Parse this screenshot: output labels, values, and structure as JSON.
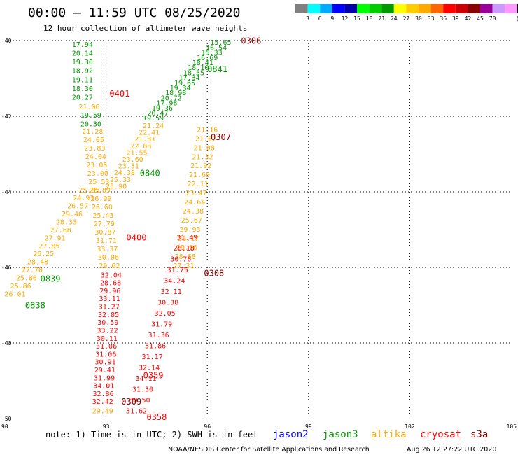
{
  "header": {
    "title": "00:00 – 11:59 UTC 08/25/2020",
    "subtitle": "12 hour collection of altimeter wave heights"
  },
  "legend": {
    "colors": [
      "#808080",
      "#00ffff",
      "#00aaff",
      "#0000ff",
      "#0000aa",
      "#00ff00",
      "#00cc00",
      "#009900",
      "#ffff00",
      "#ffcc00",
      "#ffaa00",
      "#ff6600",
      "#ff0000",
      "#cc0000",
      "#880000",
      "#990099",
      "#cc99ff",
      "#ff99ff",
      "#000000"
    ],
    "labels": [
      "3",
      "6",
      "9",
      "12",
      "15",
      "18",
      "21",
      "24",
      "27",
      "30",
      "33",
      "36",
      "39",
      "42",
      "45",
      "70",
      "(ft)"
    ]
  },
  "map": {
    "lon_ticks": [
      "90",
      "93",
      "96",
      "99",
      "102",
      "105"
    ],
    "lat_ticks": [
      "-40",
      "-42",
      "-44",
      "-46",
      "-48",
      "-50"
    ],
    "lon_range": [
      90,
      105
    ],
    "lat_range": [
      -50,
      -40
    ],
    "point_colors": {
      "jason3": "#009900",
      "altika": "#ffaa00",
      "cryosat": "#ff0000",
      "s3a": "#880000"
    },
    "tracks": [
      {
        "sat": "jason3",
        "values": [
          "17.94",
          "20.14",
          "19.30",
          "18.92",
          "19.11",
          "18.30",
          "20.27"
        ],
        "lon_start": 92.3,
        "lon_end": 92.3,
        "lat_start": -40.1,
        "lat_end": -41.5
      },
      {
        "sat": "altika",
        "values": [
          "21.06"
        ],
        "lon_start": 92.5,
        "lon_end": 92.5,
        "lat_start": -41.75,
        "lat_end": -41.75
      },
      {
        "sat": "jason3",
        "values": [
          "19.59",
          "20.30"
        ],
        "lon_start": 92.55,
        "lon_end": 92.55,
        "lat_start": -41.97,
        "lat_end": -42.2
      },
      {
        "sat": "altika",
        "values": [
          "21.28",
          "24.05",
          "23.83",
          "24.04",
          "23.05",
          "23.00",
          "25.53",
          "25.89",
          "26.99",
          "26.60",
          "25.43",
          "27.79",
          "30.87",
          "31.71",
          "33.37",
          "30.06",
          "29.62"
        ],
        "lon_start": 92.6,
        "lon_end": 93.1,
        "lat_start": -42.4,
        "lat_end": -45.95
      },
      {
        "sat": "cryosat",
        "values": [
          "32.04",
          "28.68",
          "29.96",
          "33.11",
          "31.27",
          "32.85",
          "30.59",
          "33.22",
          "30.11",
          "31.06",
          "31.06",
          "30.91",
          "29.41",
          "31.99",
          "34.01",
          "32.86",
          "32.42"
        ],
        "lon_start": 93.15,
        "lon_end": 92.9,
        "lat_start": -46.2,
        "lat_end": -49.55
      },
      {
        "sat": "altika",
        "values": [
          "29.49"
        ],
        "lon_start": 92.9,
        "lon_end": 92.9,
        "lat_start": -49.8,
        "lat_end": -49.8
      },
      {
        "sat": "altika",
        "values": [
          "25.85",
          "24.93",
          "26.57",
          "29.46",
          "28.33",
          "27.68",
          "27.91",
          "27.85",
          "26.25",
          "28.48",
          "27.70",
          "25.86",
          "25.86",
          "26.01"
        ],
        "lon_start": 92.5,
        "lon_end": 90.3,
        "lat_start": -43.95,
        "lat_end": -46.7
      },
      {
        "sat": "altika",
        "values": [
          "21.24",
          "22.41",
          "21.81",
          "22.83",
          "21.55",
          "23.60",
          "23.31",
          "24.38",
          "25.33",
          "25.90"
        ],
        "lon_start": 94.4,
        "lon_end": 93.3,
        "lat_start": -42.25,
        "lat_end": -43.85
      },
      {
        "sat": "jason3",
        "values": [
          "15.65",
          "16.54",
          "15.33",
          "16.69",
          "18.41",
          "18.10",
          "18.55",
          "17.34",
          "19.65",
          "19.34",
          "18.98",
          "20.72",
          "17.98",
          "19.36",
          "20.47",
          "19.59"
        ],
        "lon_start": 96.4,
        "lon_end": 94.4,
        "lat_start": -40.05,
        "lat_end": -42.05
      },
      {
        "sat": "altika",
        "values": [
          "21.16",
          "21.07",
          "21.08",
          "21.32",
          "21.92",
          "21.69",
          "22.11",
          "23.47",
          "24.64",
          "24.38",
          "25.67",
          "29.93",
          "28.17",
          "29.96",
          "28.68",
          "27.31"
        ],
        "lon_start": 96.0,
        "lon_end": 95.3,
        "lat_start": -42.35,
        "lat_end": -45.95
      },
      {
        "sat": "cryosat",
        "values": [
          "31.49",
          "28.18",
          "30.76",
          "31.75",
          "34.24",
          "32.11",
          "30.38",
          "32.05",
          "31.79",
          "31.36",
          "31.86",
          "31.17",
          "32.14",
          "34.11",
          "31.30",
          "30.50",
          "31.62"
        ],
        "lon_start": 95.4,
        "lon_end": 93.9,
        "lat_start": -45.2,
        "lat_end": -49.8
      }
    ],
    "pass_labels": [
      {
        "text": "0306",
        "lon": 97.0,
        "lat": -40.0,
        "sat": "s3a"
      },
      {
        "text": "0401",
        "lon": 93.1,
        "lat": -41.4,
        "sat": "cryosat"
      },
      {
        "text": "0841",
        "lon": 96.0,
        "lat": -40.75,
        "sat": "jason3"
      },
      {
        "text": "0307",
        "lon": 96.1,
        "lat": -42.55,
        "sat": "s3a"
      },
      {
        "text": "0840",
        "lon": 94.0,
        "lat": -43.5,
        "sat": "jason3"
      },
      {
        "text": "0400",
        "lon": 93.6,
        "lat": -45.2,
        "sat": "cryosat"
      },
      {
        "text": "0839",
        "lon": 91.05,
        "lat": -46.3,
        "sat": "jason3"
      },
      {
        "text": "0308",
        "lon": 95.9,
        "lat": -46.15,
        "sat": "s3a"
      },
      {
        "text": "0838",
        "lon": 90.6,
        "lat": -47.0,
        "sat": "jason3"
      },
      {
        "text": "0359",
        "lon": 94.1,
        "lat": -48.85,
        "sat": "cryosat"
      },
      {
        "text": "0309",
        "lon": 93.45,
        "lat": -49.55,
        "sat": "s3a"
      },
      {
        "text": "0358",
        "lon": 94.2,
        "lat": -49.95,
        "sat": "cryosat"
      }
    ]
  },
  "note": "note:  1) Time is in UTC;  2) SWH is in feet",
  "satellites": [
    {
      "name": "jason2",
      "color": "#0000ff"
    },
    {
      "name": "jason3",
      "color": "#009900"
    },
    {
      "name": "altika",
      "color": "#ffaa00"
    },
    {
      "name": "cryosat",
      "color": "#ff0000"
    },
    {
      "name": "s3a",
      "color": "#880000"
    }
  ],
  "footer": {
    "credit": "NOAA/NESDIS Center for Satellite Applications and Research",
    "timestamp": "Aug 26 12:27:22 UTC 2020"
  }
}
